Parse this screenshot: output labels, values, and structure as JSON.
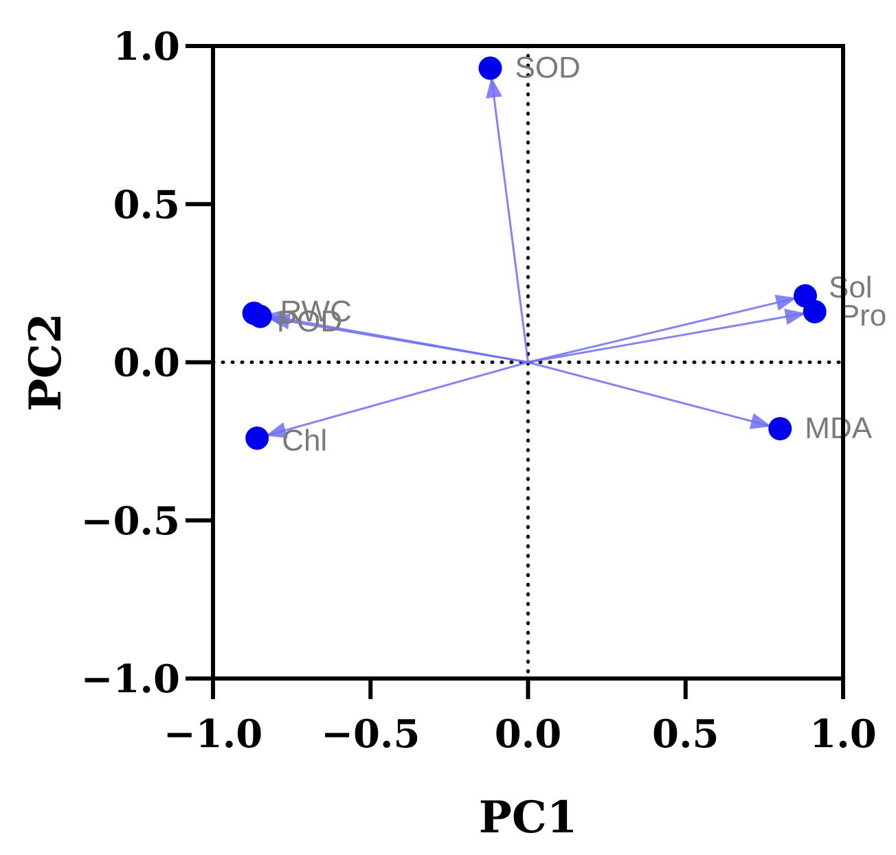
{
  "chart_data": {
    "type": "scatter",
    "title": "",
    "xlabel": "PC1",
    "ylabel": "PC2",
    "xlim": [
      -1.0,
      1.0
    ],
    "ylim": [
      -1.0,
      1.0
    ],
    "x_ticks": [
      -1.0,
      -0.5,
      0.0,
      0.5,
      1.0
    ],
    "y_ticks": [
      -1.0,
      -0.5,
      0.0,
      0.5,
      1.0
    ],
    "x_tick_labels": [
      "−1.0",
      "−0.5",
      "0.0",
      "0.5",
      "1.0"
    ],
    "y_tick_labels": [
      "−1.0",
      "−0.5",
      "0.0",
      "0.5",
      "1.0"
    ],
    "reference_lines": "dotted lines at x=0 and y=0",
    "grid": false,
    "legend": "none",
    "arrows_from_origin": true,
    "colors": {
      "point": "#0000ee",
      "arrow": "#6f6ff5",
      "label": "#7a7a7a"
    },
    "points": [
      {
        "label": "SOD",
        "x": -0.12,
        "y": 0.93
      },
      {
        "label": "Sol",
        "x": 0.88,
        "y": 0.21
      },
      {
        "label": "Pro",
        "x": 0.91,
        "y": 0.16
      },
      {
        "label": "MDA",
        "x": 0.8,
        "y": -0.21
      },
      {
        "label": "RWC",
        "x": -0.87,
        "y": 0.155
      },
      {
        "label": "POD",
        "x": -0.85,
        "y": 0.145
      },
      {
        "label": "Chl",
        "x": -0.86,
        "y": -0.24
      }
    ]
  }
}
